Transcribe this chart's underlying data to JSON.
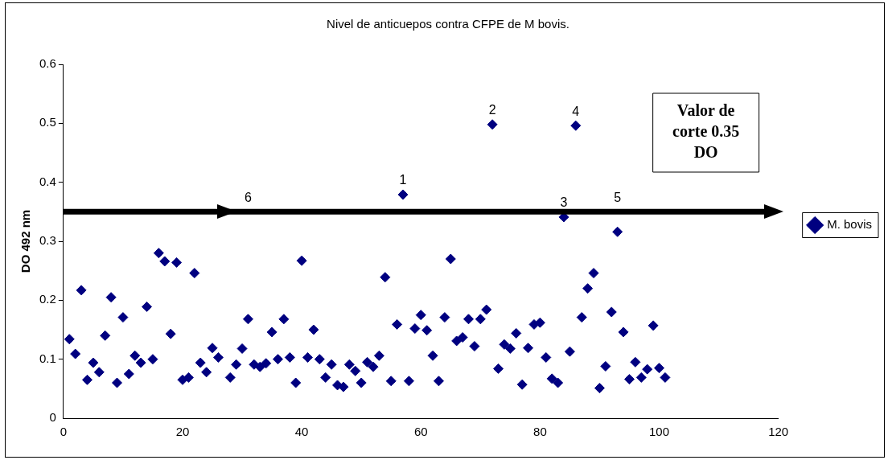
{
  "chart_data": {
    "type": "scatter",
    "title": "Nivel de anticuepos contra CFPE de M bovis.",
    "ylabel": "DO 492 nm",
    "xlim": [
      0,
      120
    ],
    "xticks": [
      0,
      20,
      40,
      60,
      80,
      100,
      120
    ],
    "ylim": [
      0,
      0.6
    ],
    "yticks": [
      0,
      0.1,
      0.2,
      0.3,
      0.4,
      0.5,
      0.6
    ],
    "grid": false,
    "legend": "right",
    "marker": "diamond",
    "series": [
      {
        "name": "M. bovis",
        "color": "#000080",
        "values": [
          0.134,
          0.109,
          0.217,
          0.065,
          0.094,
          0.078,
          0.14,
          0.205,
          0.06,
          0.171,
          0.075,
          0.106,
          0.094,
          0.189,
          0.1,
          0.28,
          0.266,
          0.143,
          0.264,
          0.065,
          0.069,
          0.246,
          0.094,
          0.078,
          0.119,
          0.103,
          0.069,
          0.091,
          0.118,
          0.168,
          0.091,
          0.087,
          0.093,
          0.146,
          0.1,
          0.168,
          0.103,
          0.06,
          0.267,
          0.103,
          0.15,
          0.1,
          0.069,
          0.091,
          0.056,
          0.053,
          0.091,
          0.08,
          0.06,
          0.095,
          0.087,
          0.106,
          0.239,
          0.063,
          0.159,
          0.379,
          0.063,
          0.152,
          0.175,
          0.149,
          0.106,
          0.063,
          0.171,
          0.27,
          0.131,
          0.137,
          0.168,
          0.122,
          0.168,
          0.184,
          0.498,
          0.084,
          0.125,
          0.118,
          0.144,
          0.057,
          0.119,
          0.159,
          0.162,
          0.103,
          0.067,
          0.06,
          0.341,
          0.113,
          0.496,
          0.171,
          0.22,
          0.246,
          0.051,
          0.088,
          0.18,
          0.316,
          0.146,
          0.066,
          0.095,
          0.069,
          0.083,
          0.157,
          0.085,
          0.069
        ]
      }
    ],
    "x": [
      1,
      2,
      3,
      4,
      5,
      6,
      7,
      8,
      9,
      10,
      11,
      12,
      13,
      14,
      15,
      16,
      17,
      18,
      19,
      20,
      21,
      22,
      23,
      24,
      25,
      26,
      28,
      29,
      30,
      31,
      32,
      33,
      34,
      35,
      36,
      37,
      38,
      39,
      40,
      41,
      42,
      43,
      44,
      45,
      46,
      47,
      48,
      49,
      50,
      51,
      52,
      53,
      54,
      55,
      56,
      57,
      58,
      59,
      60,
      61,
      62,
      63,
      64,
      65,
      66,
      67,
      68,
      69,
      70,
      71,
      72,
      73,
      74,
      75,
      76,
      77,
      78,
      79,
      80,
      81,
      82,
      83,
      84,
      85,
      86,
      87,
      88,
      89,
      90,
      91,
      92,
      93,
      94,
      95,
      96,
      97,
      98,
      99,
      100,
      101
    ],
    "ref_lines": [
      {
        "axis": "y",
        "value": 0.35,
        "label": "Valor de corte 0.35 DO",
        "color": "#000000"
      }
    ],
    "annotations": [
      {
        "text": "1",
        "x": 57,
        "y": 0.379
      },
      {
        "text": "2",
        "x": 72,
        "y": 0.498
      },
      {
        "text": "3",
        "x": 84,
        "y": 0.341
      },
      {
        "text": "4",
        "x": 86,
        "y": 0.496
      },
      {
        "text": "5",
        "x": 93,
        "y": 0.35
      },
      {
        "text": "6",
        "x": 31,
        "y": 0.35
      }
    ]
  }
}
